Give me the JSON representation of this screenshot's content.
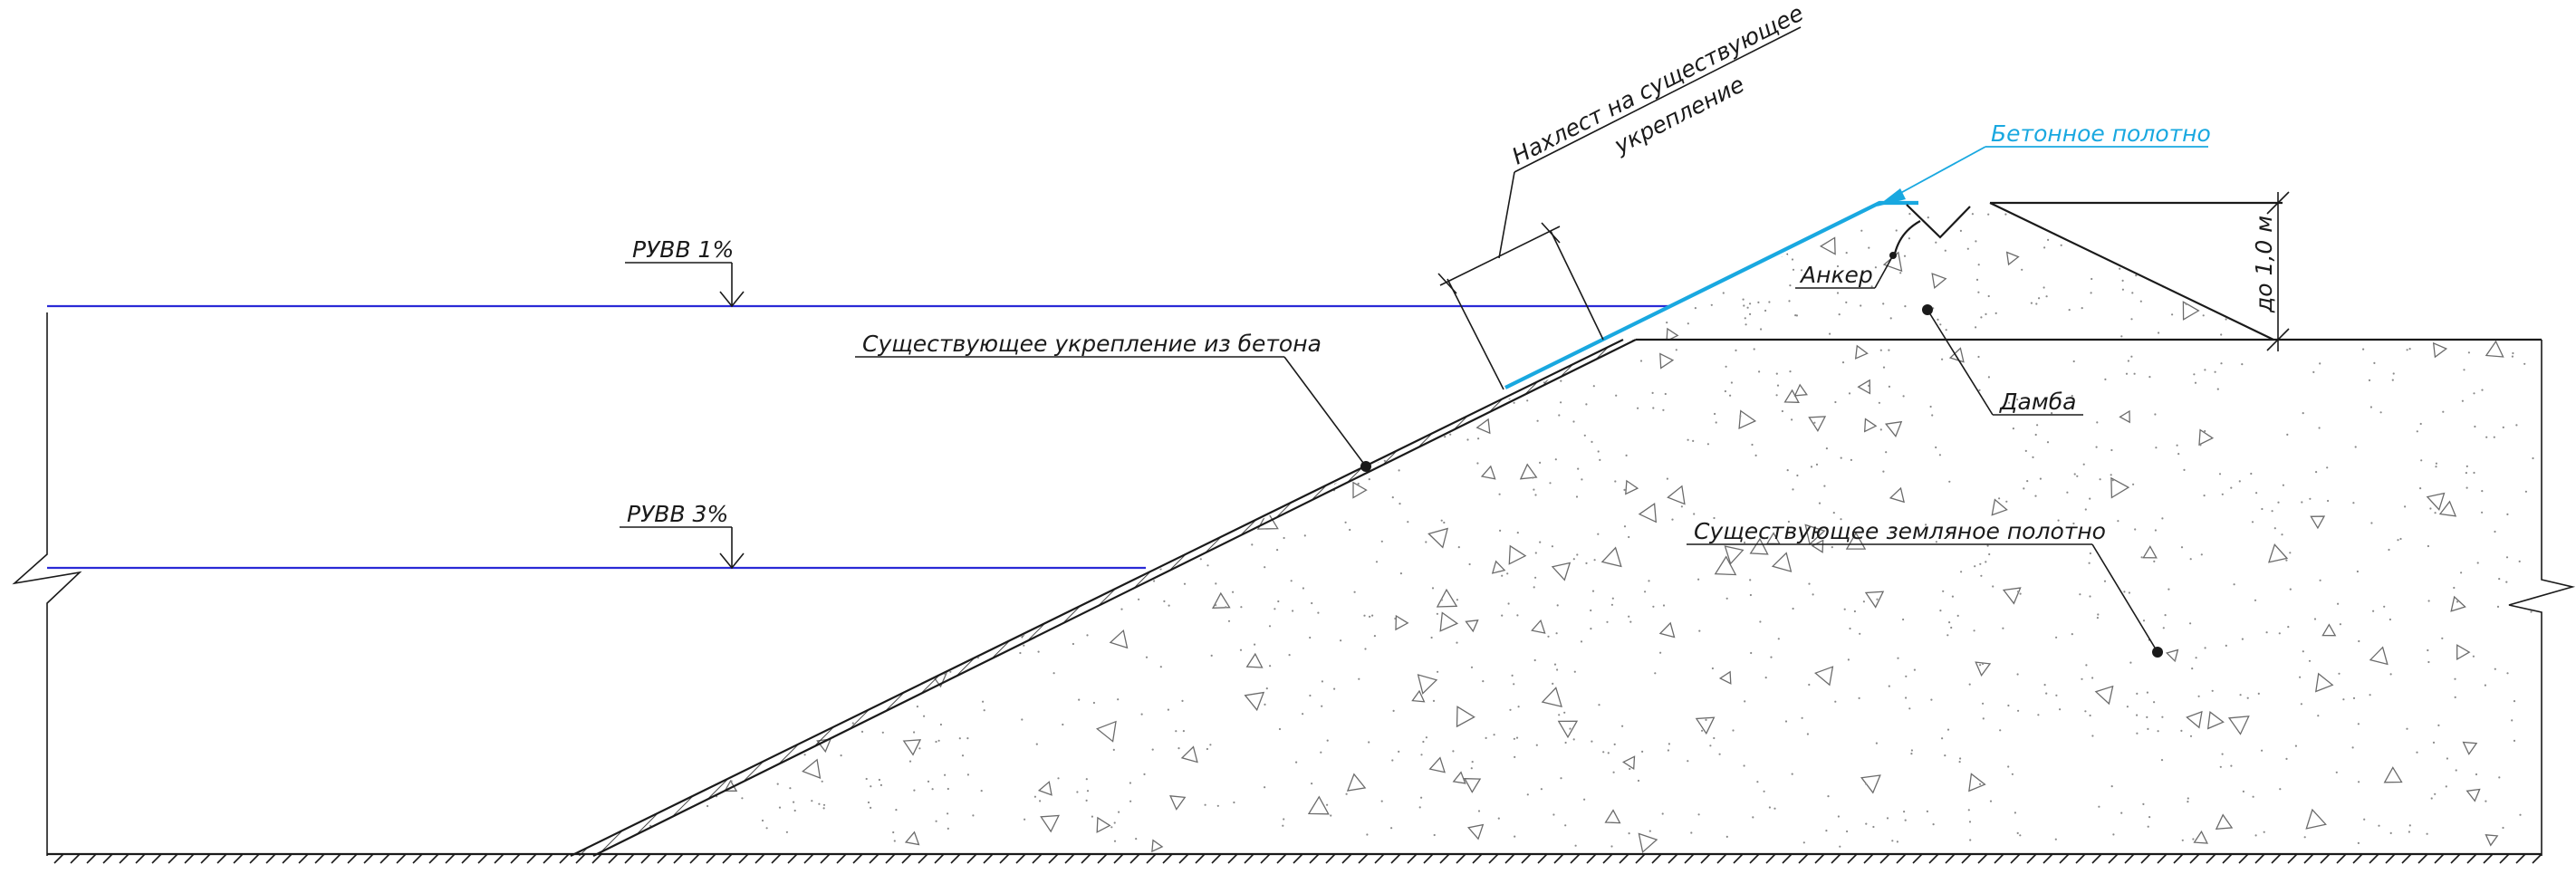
{
  "labels": {
    "water_1": "РУВВ 1%",
    "water_3": "РУВВ 3%",
    "existing_concrete": "Существующее укрепление из бетона",
    "overlap_line1": "Нахлест на  существующее",
    "overlap_line2": "укрепление",
    "concrete_canvas": "Бетонное полотно",
    "anchor": "Анкер",
    "dam": "Дамба",
    "existing_embankment": "Существующее земляное полотно",
    "height_dim": "до 1,0 м"
  },
  "colors": {
    "line": "#1a1a1a",
    "water": "#2a2ad6",
    "canvas": "#19a8e0"
  }
}
